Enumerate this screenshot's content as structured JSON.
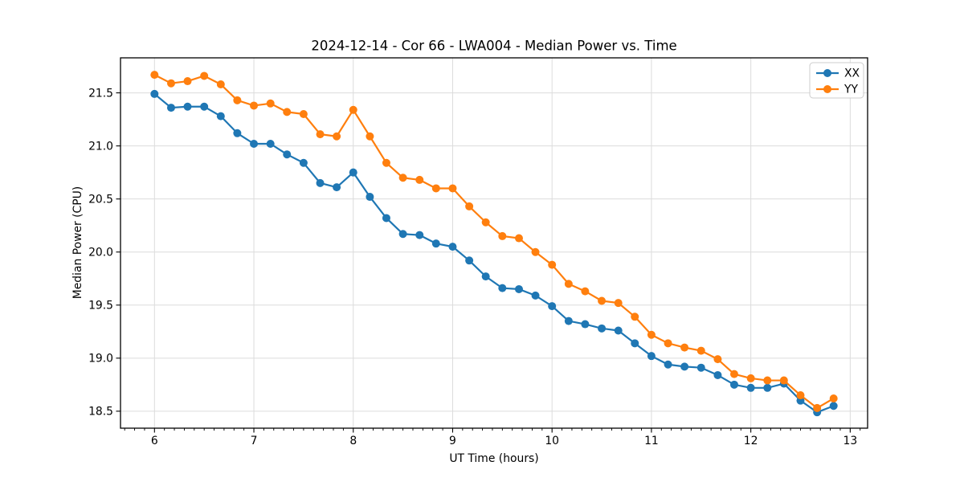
{
  "chart_data": {
    "type": "line",
    "title": "2024-12-14 - Cor 66 - LWA004 - Median Power vs. Time",
    "xlabel": "UT Time (hours)",
    "ylabel": "Median Power (CPU)",
    "xlim": [
      5.658,
      13.175
    ],
    "ylim": [
      18.34,
      21.83
    ],
    "xticks": [
      6,
      7,
      8,
      9,
      10,
      11,
      12,
      13
    ],
    "xtick_labels": [
      "6",
      "7",
      "8",
      "9",
      "10",
      "11",
      "12",
      "13"
    ],
    "yticks": [
      18.5,
      19.0,
      19.5,
      20.0,
      20.5,
      21.0,
      21.5
    ],
    "ytick_labels": [
      "18.5",
      "19.0",
      "19.5",
      "20.0",
      "20.5",
      "21.0",
      "21.5"
    ],
    "minor_xtick_step": 0.1,
    "grid": true,
    "grid_color": "#dcdcdc",
    "legend_position": "upper right",
    "x": [
      6.0,
      6.167,
      6.333,
      6.5,
      6.667,
      6.833,
      7.0,
      7.167,
      7.333,
      7.5,
      7.667,
      7.833,
      8.0,
      8.167,
      8.333,
      8.5,
      8.667,
      8.833,
      9.0,
      9.167,
      9.333,
      9.5,
      9.667,
      9.833,
      10.0,
      10.167,
      10.333,
      10.5,
      10.667,
      10.833,
      11.0,
      11.167,
      11.333,
      11.5,
      11.667,
      11.833,
      12.0,
      12.167,
      12.333,
      12.5,
      12.667,
      12.833
    ],
    "series": [
      {
        "name": "XX",
        "color": "#1f77b4",
        "marker": "circle",
        "values": [
          21.49,
          21.36,
          21.37,
          21.37,
          21.28,
          21.12,
          21.02,
          21.02,
          20.92,
          20.84,
          20.65,
          20.61,
          20.75,
          20.52,
          20.32,
          20.17,
          20.16,
          20.08,
          20.05,
          19.92,
          19.77,
          19.66,
          19.65,
          19.59,
          19.49,
          19.35,
          19.32,
          19.28,
          19.26,
          19.14,
          19.02,
          18.94,
          18.92,
          18.91,
          18.84,
          18.75,
          18.72,
          18.72,
          18.76,
          18.6,
          18.49,
          18.55
        ]
      },
      {
        "name": "YY",
        "color": "#ff7f0e",
        "marker": "circle",
        "values": [
          21.67,
          21.59,
          21.61,
          21.66,
          21.58,
          21.43,
          21.38,
          21.4,
          21.32,
          21.3,
          21.11,
          21.09,
          21.34,
          21.09,
          20.84,
          20.7,
          20.68,
          20.6,
          20.6,
          20.43,
          20.28,
          20.15,
          20.13,
          20.0,
          19.88,
          19.7,
          19.63,
          19.54,
          19.52,
          19.39,
          19.22,
          19.14,
          19.1,
          19.07,
          18.99,
          18.85,
          18.81,
          18.79,
          18.79,
          18.65,
          18.53,
          18.62
        ]
      }
    ],
    "legend": [
      {
        "label": "XX",
        "color": "#1f77b4"
      },
      {
        "label": "YY",
        "color": "#ff7f0e"
      }
    ]
  }
}
